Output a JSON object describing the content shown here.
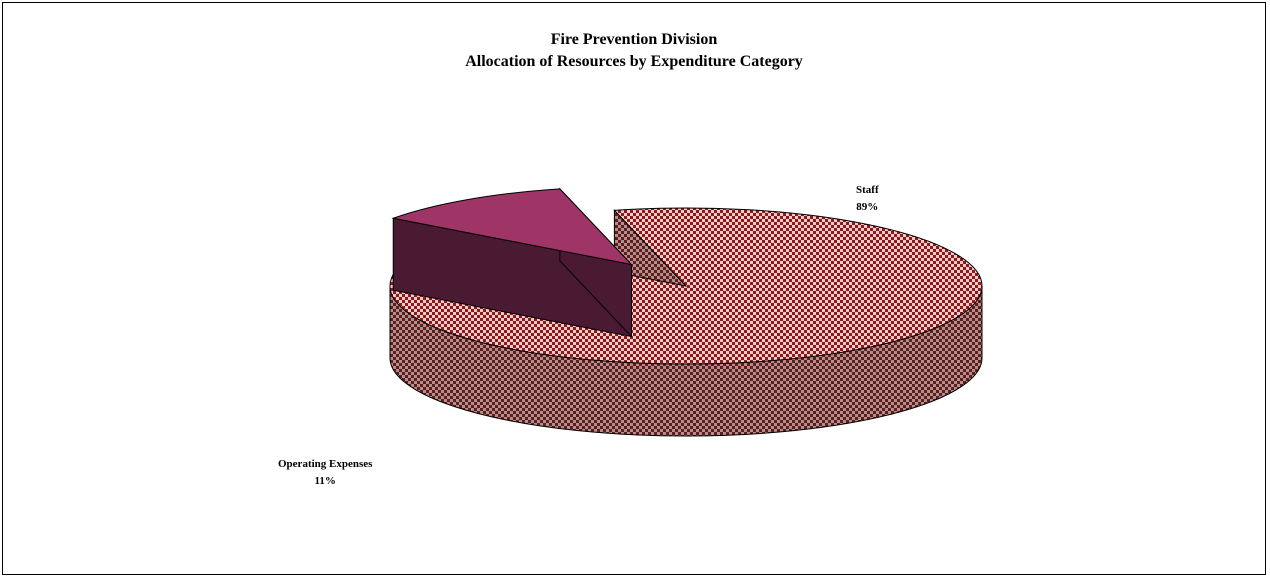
{
  "chart_data": {
    "type": "pie",
    "three_d": true,
    "title": [
      "Fire Prevention Division",
      "Allocation of Resources by Expenditure Category"
    ],
    "slices": [
      {
        "category": "Staff",
        "value": 89,
        "label_text": "89%",
        "exploded": false,
        "top_color": "#f2b3b3",
        "pattern_color": "#8b1a1a",
        "side_color": "#6e2525",
        "fill_style": "checkered"
      },
      {
        "category": "Operating Expenses",
        "value": 11,
        "label_text": "11%",
        "exploded": true,
        "top_color": "#9e3566",
        "side_color": "#4a1a33",
        "fill_style": "solid"
      }
    ],
    "legend": "none",
    "data_label_content": "category and percentage"
  }
}
